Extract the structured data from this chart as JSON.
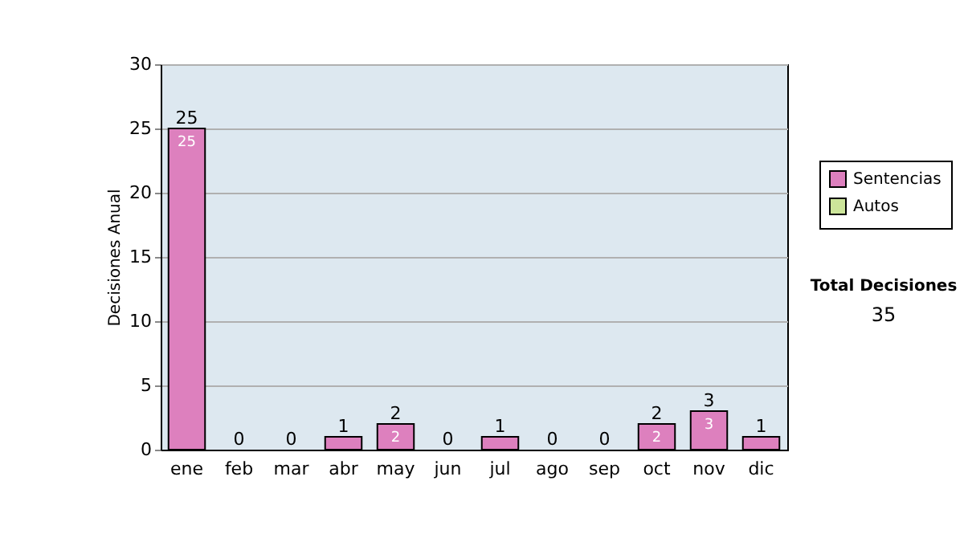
{
  "chart_data": {
    "type": "bar",
    "ylabel": "Decisiones Anual",
    "categories": [
      "ene",
      "feb",
      "mar",
      "abr",
      "may",
      "jun",
      "jul",
      "ago",
      "sep",
      "oct",
      "nov",
      "dic"
    ],
    "series": [
      {
        "name": "Sentencias",
        "color": "#dd80be",
        "values": [
          25,
          0,
          0,
          1,
          2,
          0,
          1,
          0,
          0,
          2,
          3,
          1
        ],
        "value_labels": [
          "25",
          null,
          null,
          null,
          "2",
          null,
          null,
          null,
          null,
          "2",
          "3",
          null
        ]
      },
      {
        "name": "Autos",
        "color": "#cce59a",
        "values": [
          0,
          0,
          0,
          0,
          0,
          0,
          0,
          0,
          0,
          0,
          0,
          0
        ]
      }
    ],
    "stacked": true,
    "totals": [
      "25",
      "0",
      "0",
      "1",
      "2",
      "0",
      "1",
      "0",
      "0",
      "2",
      "3",
      "1"
    ],
    "ylim": [
      0,
      30
    ],
    "yticks": [
      0,
      5,
      10,
      15,
      20,
      25,
      30
    ],
    "grid": "y",
    "legend": "right",
    "annotations": [
      "Total Decisiones",
      "35"
    ]
  }
}
